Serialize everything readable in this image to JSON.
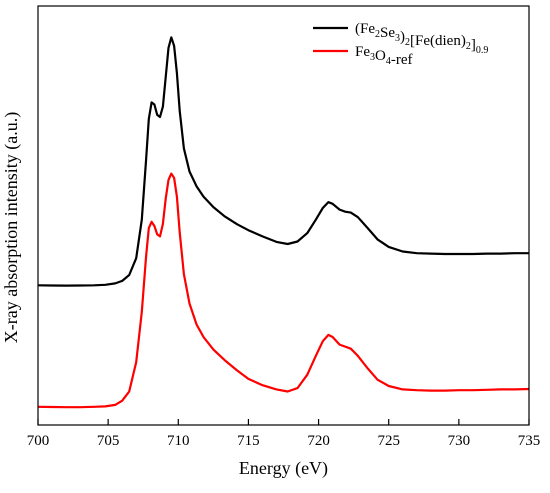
{
  "chart_data": {
    "type": "line",
    "title": "",
    "xlabel": "Energy (eV)",
    "ylabel": "X-ray absorption intensity (a.u.)",
    "xlim": [
      700,
      735
    ],
    "ylim": [
      0,
      1
    ],
    "y_ticks_shown": false,
    "x_ticks": [
      700,
      705,
      710,
      715,
      720,
      725,
      730,
      735
    ],
    "grid": false,
    "legend_position": "top-right",
    "series": [
      {
        "name_parts": [
          {
            "t": "(Fe",
            "s": "n"
          },
          {
            "t": "2",
            "s": "sub"
          },
          {
            "t": "Se",
            "s": "n"
          },
          {
            "t": "3",
            "s": "sub"
          },
          {
            "t": ")",
            "s": "n"
          },
          {
            "t": "2",
            "s": "sub"
          },
          {
            "t": "[Fe(dien)",
            "s": "n"
          },
          {
            "t": "2",
            "s": "sub"
          },
          {
            "t": "]",
            "s": "n"
          },
          {
            "t": "0.9",
            "s": "sub"
          }
        ],
        "color": "#000000",
        "points": [
          [
            700.0,
            0.3335
          ],
          [
            701.0,
            0.333
          ],
          [
            702.0,
            0.3328
          ],
          [
            703.0,
            0.333
          ],
          [
            704.0,
            0.3335
          ],
          [
            704.8,
            0.3345
          ],
          [
            705.5,
            0.338
          ],
          [
            706.0,
            0.344
          ],
          [
            706.5,
            0.358
          ],
          [
            707.0,
            0.398
          ],
          [
            707.4,
            0.49
          ],
          [
            707.7,
            0.63
          ],
          [
            707.9,
            0.73
          ],
          [
            708.1,
            0.77
          ],
          [
            708.3,
            0.765
          ],
          [
            708.5,
            0.74
          ],
          [
            708.7,
            0.735
          ],
          [
            708.9,
            0.76
          ],
          [
            709.1,
            0.83
          ],
          [
            709.3,
            0.9
          ],
          [
            709.5,
            0.925
          ],
          [
            709.7,
            0.905
          ],
          [
            709.9,
            0.84
          ],
          [
            710.1,
            0.75
          ],
          [
            710.4,
            0.66
          ],
          [
            710.8,
            0.605
          ],
          [
            711.3,
            0.57
          ],
          [
            711.8,
            0.545
          ],
          [
            712.5,
            0.52
          ],
          [
            713.3,
            0.498
          ],
          [
            714.2,
            0.479
          ],
          [
            715.0,
            0.465
          ],
          [
            716.0,
            0.45
          ],
          [
            717.0,
            0.437
          ],
          [
            717.8,
            0.432
          ],
          [
            718.5,
            0.438
          ],
          [
            719.2,
            0.458
          ],
          [
            719.8,
            0.49
          ],
          [
            720.3,
            0.518
          ],
          [
            720.7,
            0.532
          ],
          [
            721.0,
            0.528
          ],
          [
            721.5,
            0.514
          ],
          [
            721.9,
            0.509
          ],
          [
            722.3,
            0.507
          ],
          [
            722.8,
            0.496
          ],
          [
            723.5,
            0.47
          ],
          [
            724.2,
            0.443
          ],
          [
            725.0,
            0.425
          ],
          [
            726.0,
            0.414
          ],
          [
            727.0,
            0.41
          ],
          [
            728.0,
            0.409
          ],
          [
            729.0,
            0.408
          ],
          [
            730.0,
            0.408
          ],
          [
            731.0,
            0.408
          ],
          [
            732.0,
            0.409
          ],
          [
            733.0,
            0.409
          ],
          [
            734.0,
            0.41
          ],
          [
            735.0,
            0.41
          ]
        ]
      },
      {
        "name_parts": [
          {
            "t": "Fe",
            "s": "n"
          },
          {
            "t": "3",
            "s": "sub"
          },
          {
            "t": "O",
            "s": "n"
          },
          {
            "t": "4",
            "s": "sub"
          },
          {
            "t": "-ref",
            "s": "n"
          }
        ],
        "color": "#ff0000",
        "points": [
          [
            700.0,
            0.0435
          ],
          [
            701.0,
            0.043
          ],
          [
            702.0,
            0.0425
          ],
          [
            703.0,
            0.0425
          ],
          [
            704.0,
            0.0435
          ],
          [
            704.8,
            0.0445
          ],
          [
            705.5,
            0.048
          ],
          [
            706.0,
            0.058
          ],
          [
            706.5,
            0.08
          ],
          [
            707.0,
            0.15
          ],
          [
            707.4,
            0.27
          ],
          [
            707.7,
            0.4
          ],
          [
            707.9,
            0.47
          ],
          [
            708.1,
            0.485
          ],
          [
            708.3,
            0.475
          ],
          [
            708.5,
            0.455
          ],
          [
            708.7,
            0.45
          ],
          [
            708.9,
            0.48
          ],
          [
            709.1,
            0.54
          ],
          [
            709.3,
            0.585
          ],
          [
            709.5,
            0.6
          ],
          [
            709.7,
            0.59
          ],
          [
            709.9,
            0.545
          ],
          [
            710.1,
            0.46
          ],
          [
            710.4,
            0.36
          ],
          [
            710.8,
            0.29
          ],
          [
            711.3,
            0.24
          ],
          [
            711.8,
            0.21
          ],
          [
            712.5,
            0.18
          ],
          [
            713.3,
            0.155
          ],
          [
            714.2,
            0.13
          ],
          [
            715.0,
            0.11
          ],
          [
            716.0,
            0.095
          ],
          [
            717.0,
            0.085
          ],
          [
            717.8,
            0.08
          ],
          [
            718.5,
            0.088
          ],
          [
            719.2,
            0.12
          ],
          [
            719.8,
            0.165
          ],
          [
            720.3,
            0.2
          ],
          [
            720.7,
            0.215
          ],
          [
            721.0,
            0.21
          ],
          [
            721.5,
            0.192
          ],
          [
            721.9,
            0.187
          ],
          [
            722.3,
            0.182
          ],
          [
            722.8,
            0.165
          ],
          [
            723.5,
            0.135
          ],
          [
            724.2,
            0.108
          ],
          [
            725.0,
            0.093
          ],
          [
            726.0,
            0.085
          ],
          [
            727.0,
            0.083
          ],
          [
            728.0,
            0.082
          ],
          [
            729.0,
            0.082
          ],
          [
            730.0,
            0.083
          ],
          [
            731.0,
            0.083
          ],
          [
            732.0,
            0.084
          ],
          [
            733.0,
            0.085
          ],
          [
            734.0,
            0.085
          ],
          [
            735.0,
            0.086
          ]
        ]
      }
    ]
  }
}
